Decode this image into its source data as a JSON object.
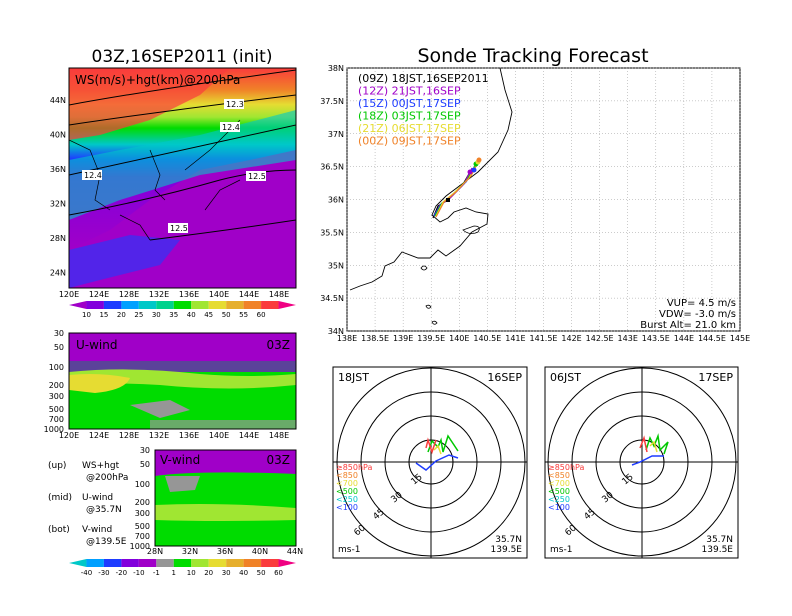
{
  "left_title": "03Z,16SEP2011 (init)",
  "right_title": "Sonde Tracking Forecast",
  "map_panel": {
    "label": "WS(m/s)+hgt(km)@200hPa",
    "lat_ticks": [
      "44N",
      "40N",
      "36N",
      "32N",
      "28N",
      "24N"
    ],
    "lon_ticks": [
      "120E",
      "124E",
      "128E",
      "132E",
      "136E",
      "140E",
      "144E",
      "148E"
    ],
    "contour_labels": [
      "12.3",
      "12.4",
      "12.4",
      "12.5",
      "12.5"
    ]
  },
  "ws_colorbar": {
    "labels": [
      "10",
      "15",
      "20",
      "25",
      "30",
      "35",
      "40",
      "45",
      "50",
      "55",
      "60"
    ],
    "colors": [
      "#a000c8",
      "#8200dc",
      "#1e3cff",
      "#00a0ff",
      "#00c8c8",
      "#00d28c",
      "#00dc00",
      "#a0e632",
      "#e6dc32",
      "#e6af2d",
      "#f08228",
      "#fa3c3c",
      "#f00082"
    ]
  },
  "u_panel": {
    "label": "U-wind",
    "time": "03Z",
    "y_ticks": [
      "30",
      "50",
      "100",
      "200",
      "300",
      "500",
      "700",
      "1000"
    ],
    "x_ticks": [
      "120E",
      "124E",
      "128E",
      "132E",
      "136E",
      "140E",
      "144E",
      "148E"
    ]
  },
  "v_panel": {
    "label": "V-wind",
    "time": "03Z",
    "y_ticks": [
      "30",
      "50",
      "100",
      "200",
      "300",
      "500",
      "700",
      "1000"
    ],
    "x_ticks": [
      "28N",
      "32N",
      "36N",
      "40N",
      "44N"
    ]
  },
  "uv_colorbar": {
    "labels": [
      "-40",
      "-30",
      "-20",
      "-10",
      "-1",
      "1",
      "10",
      "20",
      "30",
      "40",
      "50",
      "60"
    ],
    "colors": [
      "#00c8c8",
      "#00a0ff",
      "#1e3cff",
      "#8200dc",
      "#a000c8",
      "#969696",
      "#00dc00",
      "#a0e632",
      "#e6dc32",
      "#e6af2d",
      "#f08228",
      "#fa3c3c",
      "#f00082"
    ]
  },
  "legend_notes": [
    {
      "a": "(up)",
      "b": "WS+hgt",
      "c": "@200hPa"
    },
    {
      "a": "(mid)",
      "b": "U-wind",
      "c": "@35.7N"
    },
    {
      "a": "(bot)",
      "b": "V-wind",
      "c": "@139.5E"
    }
  ],
  "tracking_map": {
    "lat_ticks": [
      "38N",
      "37.5N",
      "37N",
      "36.5N",
      "36N",
      "35.5N",
      "35N",
      "34.5N",
      "34N"
    ],
    "lon_ticks": [
      "138E",
      "138.5E",
      "139E",
      "139.5E",
      "140E",
      "140.5E",
      "141E",
      "141.5E",
      "142E",
      "142.5E",
      "143E",
      "143.5E",
      "144E",
      "144.5E",
      "145E"
    ],
    "entries": [
      {
        "text": "(09Z)  18JST,16SEP2011",
        "color": "#000000"
      },
      {
        "text": "(12Z)  21JST,16SEP",
        "color": "#a000c8"
      },
      {
        "text": "(15Z)  00JST,17SEP",
        "color": "#1e3cff"
      },
      {
        "text": "(18Z)  03JST,17SEP",
        "color": "#00c800"
      },
      {
        "text": "(21Z)  06JST,17SEP",
        "color": "#e6dc32"
      },
      {
        "text": "(00Z)  09JST,17SEP",
        "color": "#f08228"
      }
    ],
    "vup": "VUP=  4.5  m/s",
    "vdw": "VDW= -3.0  m/s",
    "burst": "Burst Alt= 21.0  km"
  },
  "hodo_left": {
    "jst": "18JST",
    "date": "16SEP",
    "lat": "35.7N",
    "lon": "139.5E",
    "unit": "ms-1"
  },
  "hodo_right": {
    "jst": "06JST",
    "date": "17SEP",
    "lat": "35.7N",
    "lon": "139.5E",
    "unit": "ms-1"
  },
  "hodo_ring_labels": [
    "15",
    "30",
    "45",
    "60"
  ],
  "hodo_legend": [
    {
      "text": "≥850hPa",
      "color": "#fa3c3c"
    },
    {
      "text": "<850",
      "color": "#f08228"
    },
    {
      "text": "<700",
      "color": "#e6dc32"
    },
    {
      "text": "<500",
      "color": "#00c800"
    },
    {
      "text": "<250",
      "color": "#00c8c8"
    },
    {
      "text": "<100",
      "color": "#1e3cff"
    }
  ]
}
